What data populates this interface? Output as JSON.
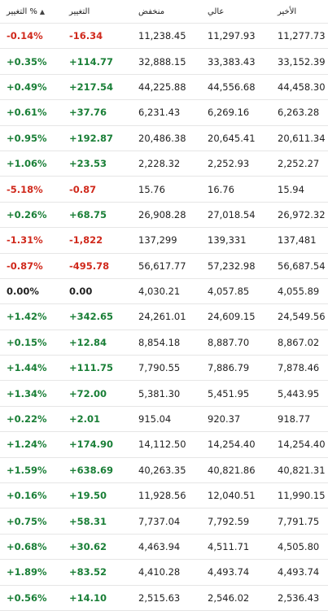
{
  "headers": {
    "change_pct": "التغيير %",
    "change": "التغيير",
    "low": "منخفض",
    "high": "عالي",
    "last": "الأخير"
  },
  "rows": [
    {
      "pct": "-0.14%",
      "chg": "-16.34",
      "low": "11,238.45",
      "high": "11,297.93",
      "last": "11,277.73",
      "dir": "neg"
    },
    {
      "pct": "+0.35%",
      "chg": "+114.77",
      "low": "32,888.15",
      "high": "33,383.43",
      "last": "33,152.39",
      "dir": "pos"
    },
    {
      "pct": "+0.49%",
      "chg": "+217.54",
      "low": "44,225.88",
      "high": "44,556.68",
      "last": "44,458.30",
      "dir": "pos"
    },
    {
      "pct": "+0.61%",
      "chg": "+37.76",
      "low": "6,231.43",
      "high": "6,269.16",
      "last": "6,263.28",
      "dir": "pos"
    },
    {
      "pct": "+0.95%",
      "chg": "+192.87",
      "low": "20,486.38",
      "high": "20,645.41",
      "last": "20,611.34",
      "dir": "pos"
    },
    {
      "pct": "+1.06%",
      "chg": "+23.53",
      "low": "2,228.32",
      "high": "2,252.93",
      "last": "2,252.27",
      "dir": "pos"
    },
    {
      "pct": "-5.18%",
      "chg": "-0.87",
      "low": "15.76",
      "high": "16.76",
      "last": "15.94",
      "dir": "neg"
    },
    {
      "pct": "+0.26%",
      "chg": "+68.75",
      "low": "26,908.28",
      "high": "27,018.54",
      "last": "26,972.32",
      "dir": "pos"
    },
    {
      "pct": "-1.31%",
      "chg": "-1,822",
      "low": "137,299",
      "high": "139,331",
      "last": "137,481",
      "dir": "neg"
    },
    {
      "pct": "-0.87%",
      "chg": "-495.78",
      "low": "56,617.77",
      "high": "57,232.98",
      "last": "56,687.54",
      "dir": "neg"
    },
    {
      "pct": "0.00%",
      "chg": "0.00",
      "low": "4,030.21",
      "high": "4,057.85",
      "last": "4,055.89",
      "dir": "neu"
    },
    {
      "pct": "+1.42%",
      "chg": "+342.65",
      "low": "24,261.01",
      "high": "24,609.15",
      "last": "24,549.56",
      "dir": "pos"
    },
    {
      "pct": "+0.15%",
      "chg": "+12.84",
      "low": "8,854.18",
      "high": "8,887.70",
      "last": "8,867.02",
      "dir": "pos"
    },
    {
      "pct": "+1.44%",
      "chg": "+111.75",
      "low": "7,790.55",
      "high": "7,886.79",
      "last": "7,878.46",
      "dir": "pos"
    },
    {
      "pct": "+1.34%",
      "chg": "+72.00",
      "low": "5,381.30",
      "high": "5,451.95",
      "last": "5,443.95",
      "dir": "pos"
    },
    {
      "pct": "+0.22%",
      "chg": "+2.01",
      "low": "915.04",
      "high": "920.37",
      "last": "918.77",
      "dir": "pos"
    },
    {
      "pct": "+1.24%",
      "chg": "+174.90",
      "low": "14,112.50",
      "high": "14,254.40",
      "last": "14,254.40",
      "dir": "pos"
    },
    {
      "pct": "+1.59%",
      "chg": "+638.69",
      "low": "40,263.35",
      "high": "40,821.86",
      "last": "40,821.31",
      "dir": "pos"
    },
    {
      "pct": "+0.16%",
      "chg": "+19.50",
      "low": "11,928.56",
      "high": "12,040.51",
      "last": "11,990.15",
      "dir": "pos"
    },
    {
      "pct": "+0.75%",
      "chg": "+58.31",
      "low": "7,737.04",
      "high": "7,792.59",
      "last": "7,791.75",
      "dir": "pos"
    },
    {
      "pct": "+0.68%",
      "chg": "+30.62",
      "low": "4,463.94",
      "high": "4,511.71",
      "last": "4,505.80",
      "dir": "pos"
    },
    {
      "pct": "+1.89%",
      "chg": "+83.52",
      "low": "4,410.28",
      "high": "4,493.74",
      "last": "4,493.74",
      "dir": "pos"
    },
    {
      "pct": "+0.56%",
      "chg": "+14.10",
      "low": "2,515.63",
      "high": "2,546.02",
      "last": "2,536.43",
      "dir": "pos"
    }
  ]
}
